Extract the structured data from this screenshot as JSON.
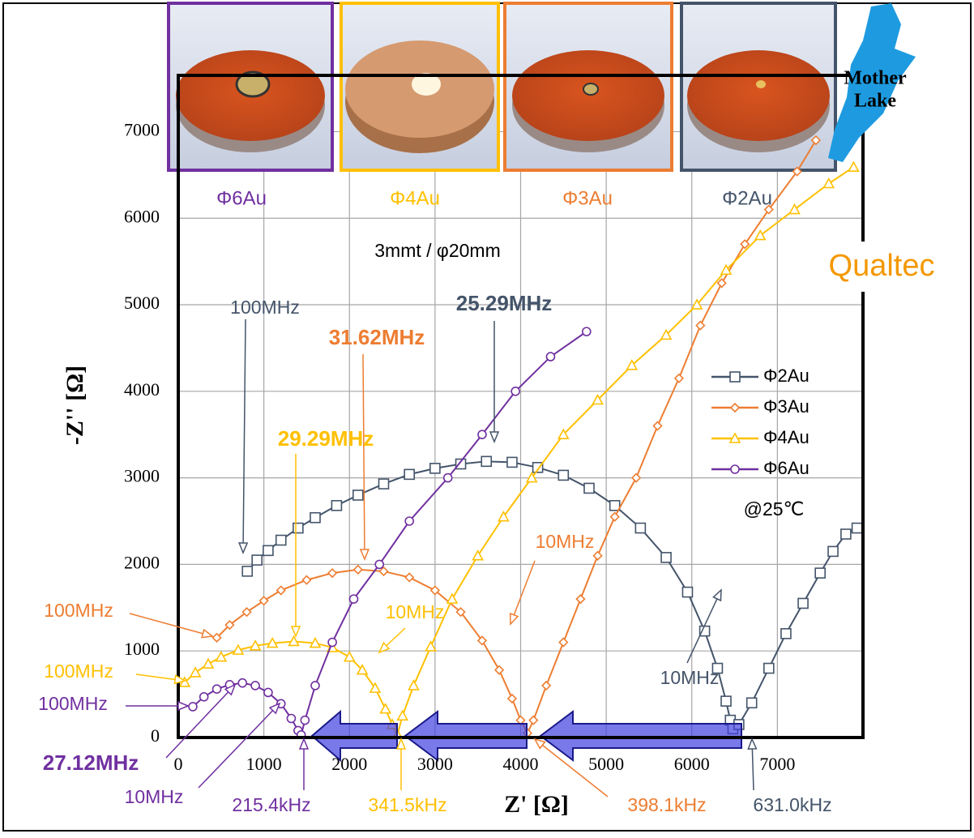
{
  "chart_data": {
    "type": "line",
    "xlabel": "Z' [Ω]",
    "ylabel": "-Z'' [Ω]",
    "xlim": [
      0,
      8000
    ],
    "ylim": [
      0,
      7650
    ],
    "xticks": [
      0,
      1000,
      2000,
      3000,
      4000,
      5000,
      6000,
      7000
    ],
    "yticks": [
      0,
      1000,
      2000,
      3000,
      4000,
      5000,
      6000,
      7000
    ],
    "grid": true,
    "legend_position": "right",
    "series": [
      {
        "name": "Φ2Au",
        "color": "#44546a",
        "marker": "square",
        "x": [
          807,
          920,
          1050,
          1200,
          1400,
          1600,
          1850,
          2100,
          2400,
          2700,
          3000,
          3300,
          3600,
          3900,
          4200,
          4500,
          4800,
          5100,
          5400,
          5700,
          5950,
          6150,
          6300,
          6400,
          6450,
          6480,
          6550,
          6700,
          6900,
          7100,
          7300,
          7500,
          7650,
          7800,
          7930
        ],
        "values": [
          1921,
          2050,
          2160,
          2280,
          2420,
          2540,
          2680,
          2800,
          2930,
          3040,
          3110,
          3160,
          3190,
          3180,
          3120,
          3030,
          2880,
          2680,
          2420,
          2080,
          1680,
          1230,
          800,
          420,
          200,
          100,
          150,
          400,
          800,
          1200,
          1550,
          1900,
          2150,
          2350,
          2420
        ]
      },
      {
        "name": "Φ3Au",
        "color": "#ed7d31",
        "marker": "diamond",
        "x": [
          450,
          600,
          800,
          1000,
          1200,
          1500,
          1800,
          2100,
          2400,
          2700,
          3000,
          3300,
          3550,
          3750,
          3900,
          4000,
          4080,
          4150,
          4300,
          4500,
          4700,
          4900,
          5100,
          5350,
          5600,
          5850,
          6100,
          6350,
          6620,
          6900,
          7230,
          7450
        ],
        "values": [
          1153,
          1300,
          1450,
          1580,
          1700,
          1820,
          1900,
          1940,
          1920,
          1850,
          1700,
          1450,
          1120,
          780,
          450,
          200,
          50,
          200,
          600,
          1100,
          1600,
          2100,
          2550,
          3000,
          3600,
          4150,
          4760,
          5250,
          5700,
          6100,
          6540,
          6900
        ]
      },
      {
        "name": "Φ4Au",
        "color": "#ffc000",
        "marker": "triangle",
        "x": [
          75,
          200,
          350,
          500,
          700,
          900,
          1100,
          1350,
          1600,
          1800,
          2000,
          2150,
          2300,
          2420,
          2500,
          2560,
          2620,
          2750,
          2950,
          3200,
          3500,
          3800,
          4130,
          4500,
          4900,
          5300,
          5700,
          6060,
          6400,
          6800,
          7200,
          7600,
          7890
        ],
        "values": [
          637,
          750,
          850,
          930,
          1010,
          1060,
          1090,
          1110,
          1090,
          1040,
          930,
          780,
          570,
          330,
          150,
          30,
          250,
          600,
          1050,
          1600,
          2100,
          2550,
          3000,
          3500,
          3900,
          4300,
          4650,
          5000,
          5400,
          5800,
          6100,
          6400,
          6590
        ]
      },
      {
        "name": "Φ6Au",
        "color": "#7030a0",
        "marker": "circle",
        "x": [
          170,
          300,
          450,
          600,
          750,
          900,
          1050,
          1200,
          1320,
          1400,
          1436,
          1480,
          1600,
          1800,
          2050,
          2350,
          2700,
          3150,
          3550,
          3940,
          4350,
          4770
        ],
        "values": [
          356,
          470,
          560,
          610,
          630,
          600,
          520,
          390,
          220,
          80,
          30,
          200,
          600,
          1100,
          1600,
          2000,
          2500,
          3000,
          3500,
          4000,
          4400,
          4690
        ]
      }
    ],
    "annotations": [
      {
        "text": "3mmt / φ20mm",
        "color": "#000000",
        "bold": false
      },
      {
        "text": "100MHz",
        "color": "#44546a",
        "bold": false
      },
      {
        "text": "25.29MHz",
        "color": "#44546a",
        "bold": true
      },
      {
        "text": "31.62MHz",
        "color": "#ed7d31",
        "bold": true
      },
      {
        "text": "29.29MHz",
        "color": "#ffc000",
        "bold": true
      },
      {
        "text": "10MHz",
        "color": "#ed7d31",
        "bold": false
      },
      {
        "text": "10MHz",
        "color": "#ffc000",
        "bold": false
      },
      {
        "text": "100MHz",
        "color": "#ed7d31",
        "bold": false
      },
      {
        "text": "100MHz",
        "color": "#ffc000",
        "bold": false
      },
      {
        "text": "100MHz",
        "color": "#7030a0",
        "bold": false
      },
      {
        "text": "10MHz",
        "color": "#44546a",
        "bold": false
      },
      {
        "text": "@25℃",
        "color": "#000000",
        "bold": false
      },
      {
        "text": "27.12MHz",
        "color": "#7030a0",
        "bold": true
      },
      {
        "text": "10MHz",
        "color": "#7030a0",
        "bold": false
      },
      {
        "text": "215.4kHz",
        "color": "#7030a0",
        "bold": false
      },
      {
        "text": "341.5kHz",
        "color": "#ffc000",
        "bold": false
      },
      {
        "text": "398.1kHz",
        "color": "#ed7d31",
        "bold": false
      },
      {
        "text": "631.0kHz",
        "color": "#44546a",
        "bold": false
      }
    ],
    "photo_labels": [
      {
        "text": "Φ6Au",
        "color": "#7030a0"
      },
      {
        "text": "Φ4Au",
        "color": "#ffc000"
      },
      {
        "text": "Φ3Au",
        "color": "#ed7d31"
      },
      {
        "text": "Φ2Au",
        "color": "#44546a"
      }
    ],
    "logos": {
      "mother_lake": [
        "Mother",
        "Lake"
      ],
      "qualtec": "Qualtec"
    }
  }
}
